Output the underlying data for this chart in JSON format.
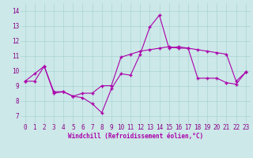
{
  "xlabel": "Windchill (Refroidissement éolien,°C)",
  "ylabel": "",
  "background_color": "#cce8e8",
  "grid_color": "#aad4d4",
  "line_color": "#aa00aa",
  "xlim": [
    -0.5,
    23.5
  ],
  "ylim": [
    6.5,
    14.5
  ],
  "xticks": [
    0,
    1,
    2,
    3,
    4,
    5,
    6,
    7,
    8,
    9,
    10,
    11,
    12,
    13,
    14,
    15,
    16,
    17,
    18,
    19,
    20,
    21,
    22,
    23
  ],
  "yticks": [
    7,
    8,
    9,
    10,
    11,
    12,
    13,
    14
  ],
  "line1_x": [
    0,
    1,
    2,
    3,
    4,
    5,
    6,
    7,
    8,
    9,
    10,
    11,
    12,
    13,
    14,
    15,
    16,
    17,
    18,
    19,
    20,
    21,
    22,
    23
  ],
  "line1_y": [
    9.3,
    9.8,
    10.3,
    8.6,
    8.6,
    8.3,
    8.2,
    7.8,
    7.2,
    8.8,
    9.8,
    9.7,
    11.1,
    12.9,
    13.7,
    11.5,
    11.6,
    11.5,
    9.5,
    9.5,
    9.5,
    9.2,
    9.1,
    9.9
  ],
  "line2_x": [
    0,
    1,
    2,
    3,
    4,
    5,
    6,
    7,
    8,
    9,
    10,
    11,
    12,
    13,
    14,
    15,
    16,
    17,
    18,
    19,
    20,
    21,
    22,
    23
  ],
  "line2_y": [
    9.3,
    9.3,
    10.3,
    8.5,
    8.6,
    8.3,
    8.5,
    8.5,
    9.0,
    9.0,
    10.9,
    11.1,
    11.3,
    11.4,
    11.5,
    11.6,
    11.5,
    11.5,
    11.4,
    11.3,
    11.2,
    11.1,
    9.3,
    9.9
  ],
  "marker": "+",
  "markersize": 3,
  "linewidth": 0.8,
  "tick_fontsize": 5.5,
  "xlabel_fontsize": 5.5
}
